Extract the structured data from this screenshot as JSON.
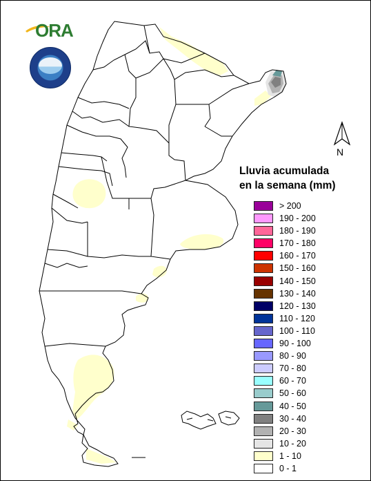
{
  "legend": {
    "title_line1": "Lluvia acumulada",
    "title_line2": "en la semana (mm)",
    "items": [
      {
        "label": "> 200",
        "color": "#990099"
      },
      {
        "label": "190 - 200",
        "color": "#FF99FF"
      },
      {
        "label": "180 - 190",
        "color": "#FF6699"
      },
      {
        "label": "170 - 180",
        "color": "#FF0066"
      },
      {
        "label": "160 - 170",
        "color": "#FF0000"
      },
      {
        "label": "150 - 160",
        "color": "#CC3300"
      },
      {
        "label": "140 - 150",
        "color": "#990000"
      },
      {
        "label": "130 - 140",
        "color": "#663300"
      },
      {
        "label": "120 - 130",
        "color": "#000066"
      },
      {
        "label": "110 - 120",
        "color": "#003399"
      },
      {
        "label": "100 - 110",
        "color": "#6666CC"
      },
      {
        "label": "90 - 100",
        "color": "#6666FF"
      },
      {
        "label": "80 - 90",
        "color": "#9999FF"
      },
      {
        "label": "70 - 80",
        "color": "#CCCCFF"
      },
      {
        "label": "60 - 70",
        "color": "#99FFFF"
      },
      {
        "label": "50 - 60",
        "color": "#99CCCC"
      },
      {
        "label": "40 - 50",
        "color": "#669999"
      },
      {
        "label": "30 - 40",
        "color": "#808080"
      },
      {
        "label": "20 - 30",
        "color": "#B2B2B2"
      },
      {
        "label": "10 - 20",
        "color": "#E5E5E5"
      },
      {
        "label": "1 - 10",
        "color": "#FFFFCC"
      },
      {
        "label": "0 - 1",
        "color": "#FFFFFF"
      }
    ]
  },
  "north_arrow": {
    "label": "N"
  },
  "logo": {
    "text": "ORA"
  },
  "colors": {
    "logo_green": "#2e7d32",
    "badge_blue": "#1e3f8a",
    "outline": "#000000"
  }
}
